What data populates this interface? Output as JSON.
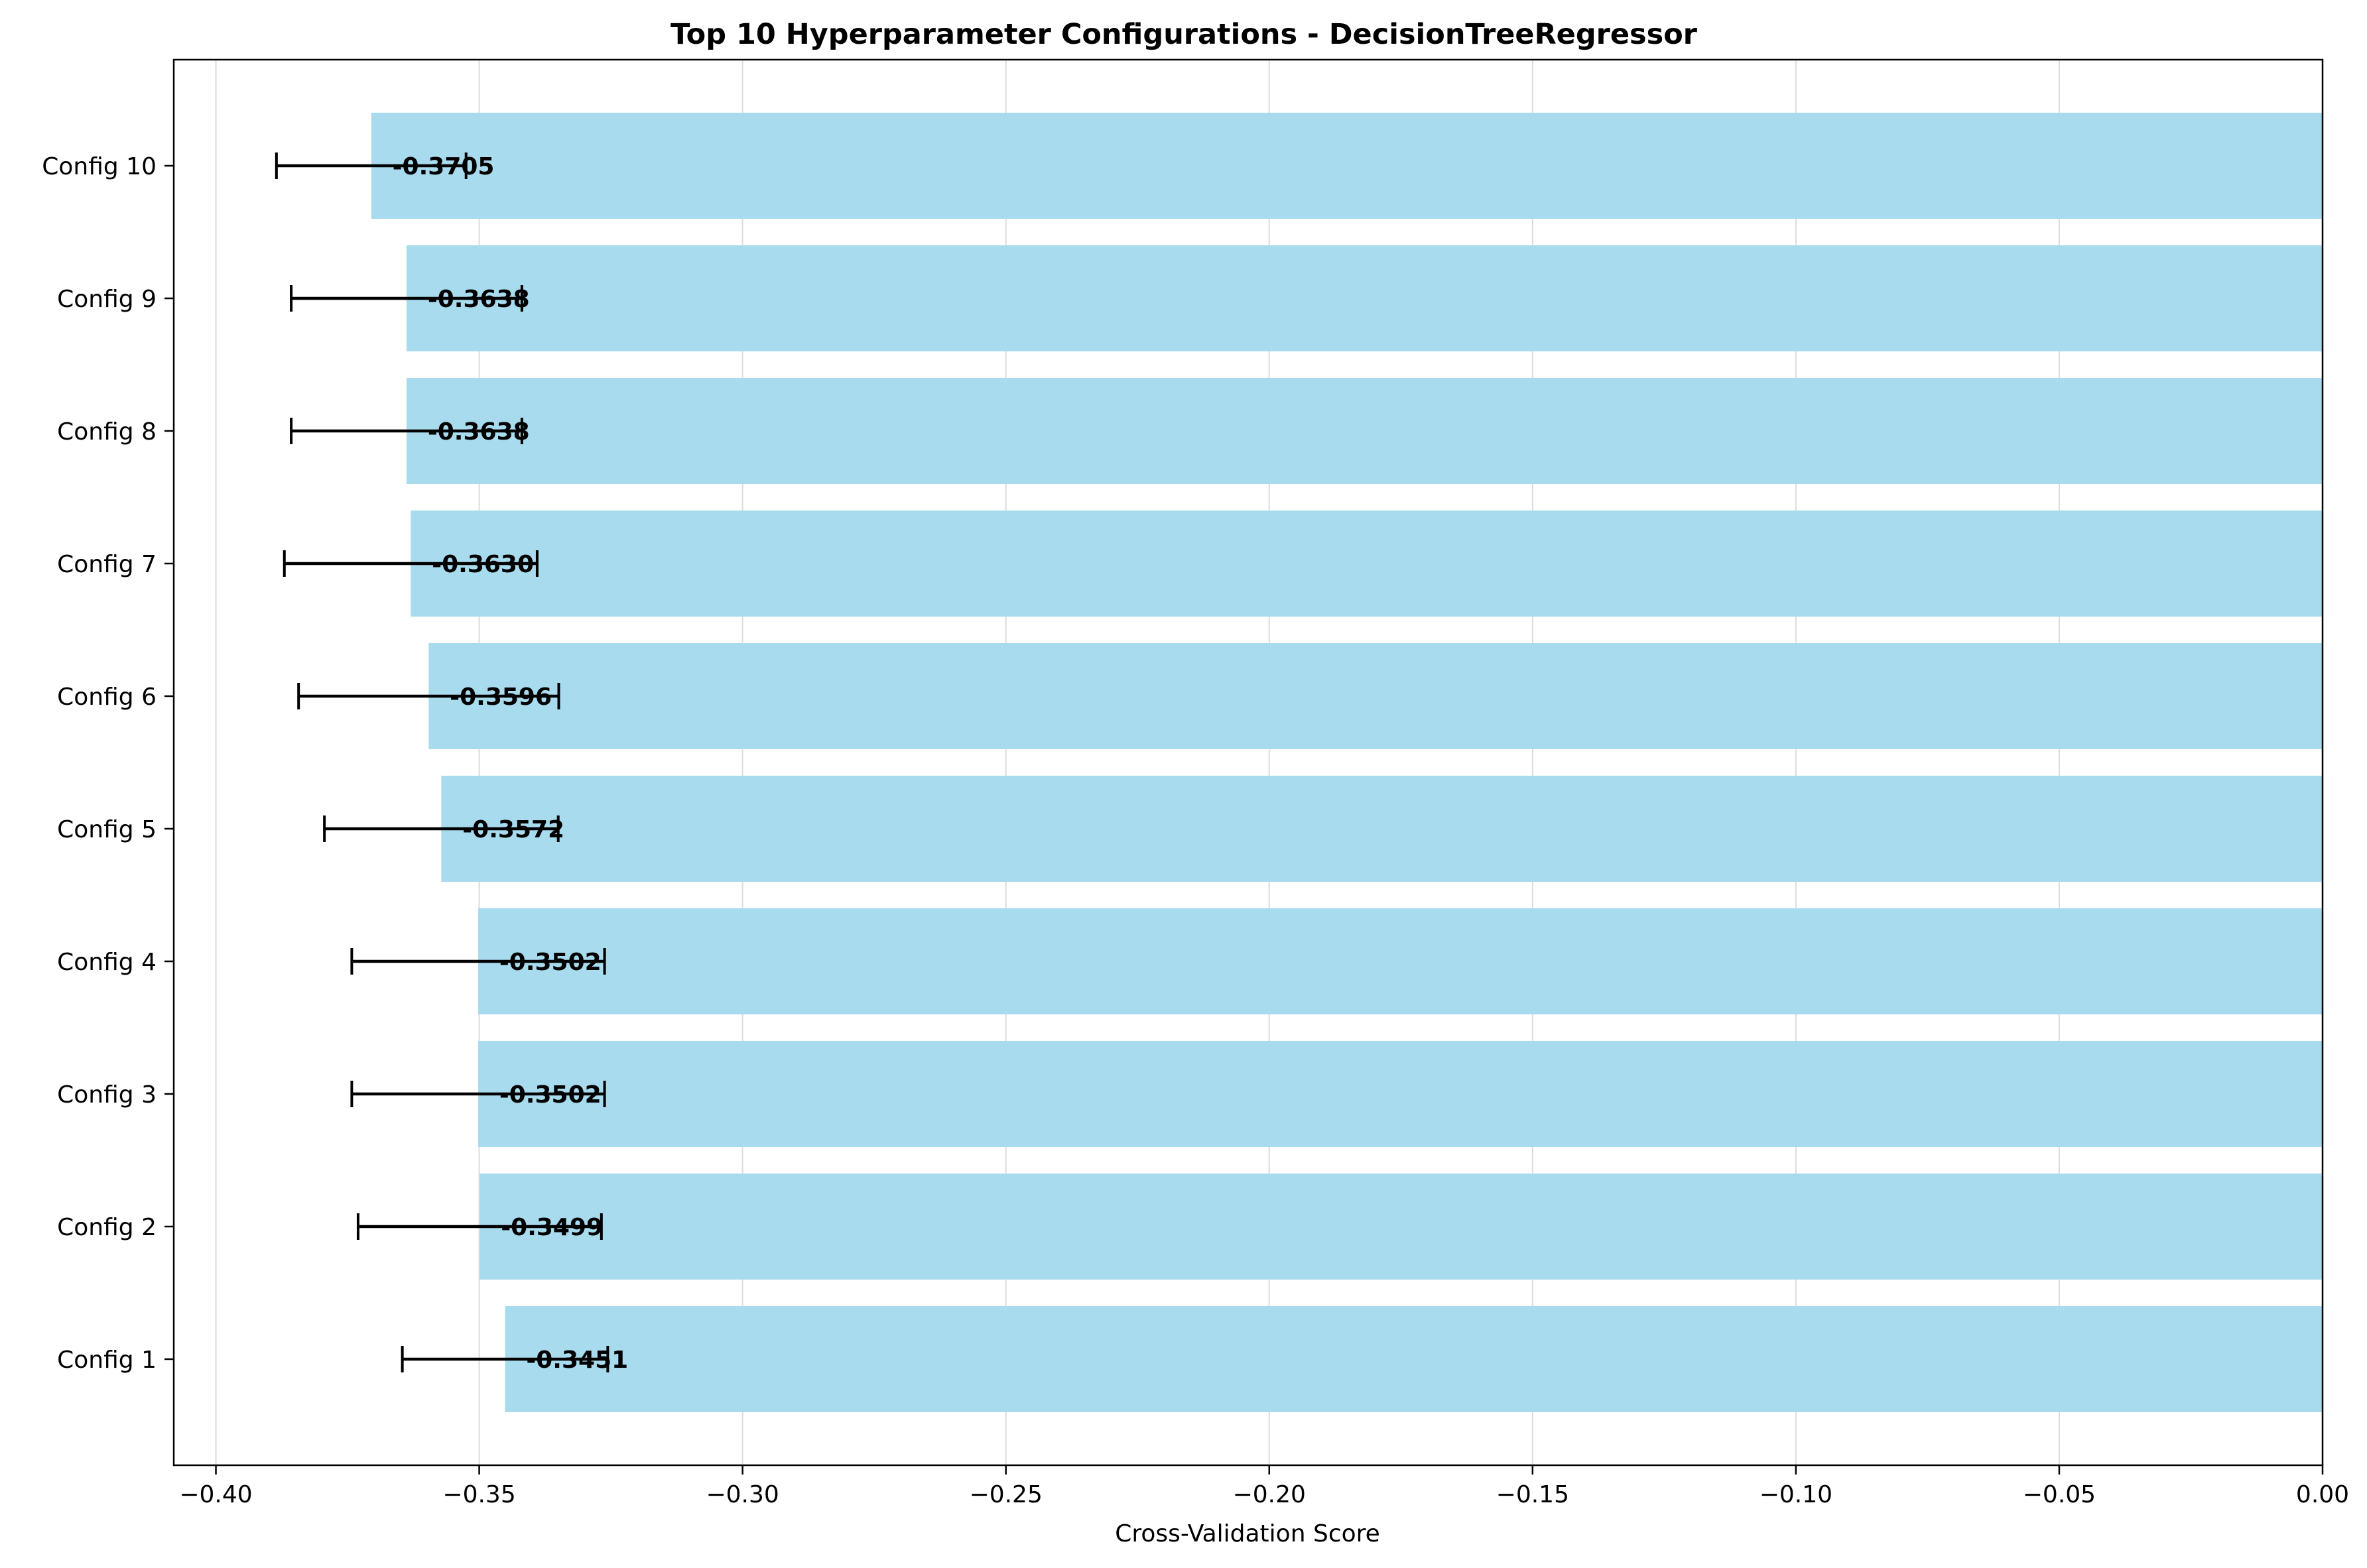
{
  "chart_data": {
    "type": "bar",
    "orientation": "horizontal",
    "title": "Top 10 Hyperparameter Configurations - DecisionTreeRegressor",
    "xlabel": "Cross-Validation Score",
    "ylabel": "",
    "xlim": [
      -0.408,
      0.0
    ],
    "x_ticks": [
      -0.4,
      -0.35,
      -0.3,
      -0.25,
      -0.2,
      -0.15,
      -0.1,
      -0.05,
      0.0
    ],
    "x_tick_labels": [
      "−0.40",
      "−0.35",
      "−0.30",
      "−0.25",
      "−0.20",
      "−0.15",
      "−0.10",
      "−0.05",
      "0.00"
    ],
    "grid": "x",
    "bar_color": "#a9dbef",
    "errorbar_color": "#000000",
    "categories": [
      "Config 1",
      "Config 2",
      "Config 3",
      "Config 4",
      "Config 5",
      "Config 6",
      "Config 7",
      "Config 8",
      "Config 9",
      "Config 10"
    ],
    "values": [
      -0.3451,
      -0.3499,
      -0.3502,
      -0.3502,
      -0.3572,
      -0.3596,
      -0.363,
      -0.3638,
      -0.3638,
      -0.3705
    ],
    "errors": [
      0.0195,
      0.0231,
      0.024,
      0.024,
      0.0222,
      0.0247,
      0.024,
      0.0219,
      0.0219,
      0.018
    ],
    "value_labels": [
      "-0.3451",
      "-0.3499",
      "-0.3502",
      "-0.3502",
      "-0.3572",
      "-0.3596",
      "-0.3630",
      "-0.3638",
      "-0.3638",
      "-0.3705"
    ]
  }
}
